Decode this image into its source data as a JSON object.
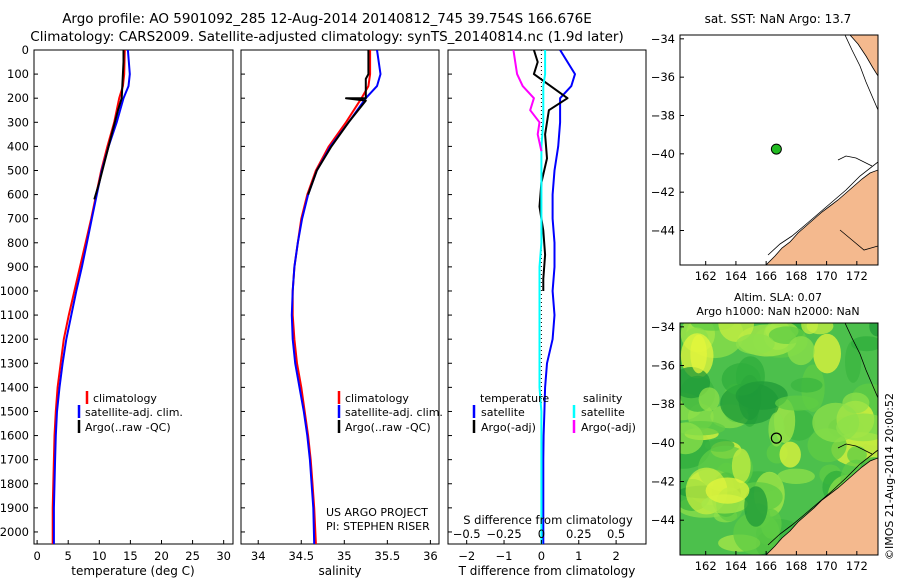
{
  "header": {
    "line1": "Argo profile: AO 5901092_285 12-Aug-2014 20140812_745 39.754S 166.676E",
    "line2": "Climatology: CARS2009. Satellite-adjusted climatology: synTS_20140814.nc (1.9d later)"
  },
  "colors": {
    "climatology": "#ff0000",
    "satellite": "#0000ff",
    "argo": "#000000",
    "argo_salinity": "#ff00ff",
    "satellite_salinity": "#00ffff",
    "land": "#f4b98e",
    "float_marker": "#22bb22"
  },
  "chart_data": [
    {
      "type": "line",
      "panel": "temperature",
      "xlabel": "temperature (deg C)",
      "ylabel": "",
      "xlim": [
        -0.5,
        31.5
      ],
      "ylim": [
        2050,
        0
      ],
      "xticks": [
        0,
        5,
        10,
        15,
        20,
        25,
        30
      ],
      "yticks": [
        0,
        100,
        200,
        300,
        400,
        500,
        600,
        700,
        800,
        900,
        1000,
        1100,
        1200,
        1300,
        1400,
        1500,
        1600,
        1700,
        1800,
        1900,
        2000
      ],
      "legend": [
        "climatology",
        "satellite-adj. clim.",
        "Argo(..raw -QC)"
      ],
      "series": [
        {
          "name": "climatology",
          "color": "#ff0000",
          "x": [
            14.1,
            14.0,
            13.8,
            13.2,
            12.4,
            11.3,
            10.3,
            9.5,
            8.7,
            7.8,
            6.9,
            6.0,
            5.1,
            4.3,
            3.8,
            3.3,
            3.0,
            2.8,
            2.7,
            2.6,
            2.5,
            2.5
          ],
          "y": [
            0,
            100,
            150,
            200,
            300,
            400,
            500,
            600,
            700,
            800,
            900,
            1000,
            1100,
            1200,
            1300,
            1400,
            1500,
            1600,
            1700,
            1800,
            1900,
            2050
          ]
        },
        {
          "name": "satellite-adj. clim.",
          "color": "#0000ff",
          "x": [
            14.6,
            14.9,
            14.7,
            13.9,
            12.8,
            11.5,
            10.4,
            9.6,
            8.8,
            8.0,
            7.2,
            6.3,
            5.5,
            4.7,
            4.1,
            3.6,
            3.2,
            3.0,
            2.9,
            2.8,
            2.7,
            2.7
          ],
          "y": [
            0,
            100,
            150,
            200,
            300,
            400,
            500,
            600,
            700,
            800,
            900,
            1000,
            1100,
            1200,
            1300,
            1400,
            1500,
            1600,
            1700,
            1800,
            1900,
            2050
          ]
        },
        {
          "name": "Argo(..raw -QC)",
          "color": "#000000",
          "x": [
            13.9,
            13.9,
            13.8,
            13.6,
            13.0,
            12.0,
            11.0,
            10.0,
            9.2
          ],
          "y": [
            0,
            50,
            100,
            200,
            250,
            350,
            450,
            550,
            620
          ]
        }
      ]
    },
    {
      "type": "line",
      "panel": "salinity",
      "xlabel": "salinity",
      "xlim": [
        33.8,
        36.1
      ],
      "ylim": [
        2050,
        0
      ],
      "xticks": [
        34,
        34.5,
        35,
        35.5,
        36
      ],
      "xticklabels": [
        "34",
        "34.5",
        "35",
        "35.5",
        "36"
      ],
      "legend": [
        "climatology",
        "satellite-adj. clim.",
        "Argo(..raw -QC)"
      ],
      "annotations": [
        "US ARGO PROJECT",
        "PI: STEPHEN RISER"
      ],
      "series": [
        {
          "name": "climatology",
          "color": "#ff0000",
          "x": [
            35.3,
            35.3,
            35.28,
            35.2,
            35.02,
            34.82,
            34.67,
            34.57,
            34.5,
            34.46,
            34.42,
            34.4,
            34.4,
            34.42,
            34.45,
            34.5,
            34.54,
            34.58,
            34.61,
            34.63,
            34.65,
            34.67
          ],
          "y": [
            0,
            100,
            150,
            200,
            300,
            400,
            500,
            600,
            700,
            800,
            900,
            1000,
            1100,
            1200,
            1300,
            1400,
            1500,
            1600,
            1700,
            1800,
            1900,
            2050
          ]
        },
        {
          "name": "satellite-adj. clim.",
          "color": "#0000ff",
          "x": [
            35.38,
            35.42,
            35.38,
            35.25,
            35.05,
            34.84,
            34.68,
            34.58,
            34.51,
            34.46,
            34.42,
            34.4,
            34.39,
            34.4,
            34.43,
            34.48,
            34.53,
            34.57,
            34.6,
            34.62,
            34.64,
            34.65
          ],
          "y": [
            0,
            100,
            150,
            200,
            300,
            400,
            500,
            600,
            700,
            800,
            900,
            1000,
            1100,
            1200,
            1300,
            1400,
            1500,
            1600,
            1700,
            1800,
            1900,
            2050
          ]
        },
        {
          "name": "Argo(..raw -QC)",
          "color": "#000000",
          "x": [
            35.28,
            35.28,
            35.25,
            35.25,
            35.02,
            35.25,
            35.05,
            34.85,
            34.68,
            34.58
          ],
          "y": [
            0,
            100,
            120,
            200,
            200,
            210,
            300,
            400,
            500,
            600
          ]
        }
      ]
    },
    {
      "type": "line",
      "panel": "difference",
      "xlabel": "T difference from climatology",
      "xlabel_top": "S difference from climatology",
      "xlim": [
        -2.5,
        2.8
      ],
      "ylim": [
        2050,
        0
      ],
      "xticks": [
        -2,
        -1,
        0,
        1,
        2
      ],
      "xticklabels": [
        "−2",
        "−1",
        "0",
        "1",
        "2"
      ],
      "s_ticklabels": [
        "−0.5",
        "−0.25",
        "0",
        "0.25",
        "0.5"
      ],
      "legend_title_left": "temperature",
      "legend_title_right": "salinity",
      "legend": [
        "satellite",
        "Argo(-adj)",
        "satellite",
        "Argo(-adj)"
      ],
      "series": [
        {
          "name": "satellite",
          "color": "#0000ff",
          "x": [
            0.5,
            0.9,
            0.8,
            0.5,
            0.5,
            0.45,
            0.35,
            0.3,
            0.3,
            0.35,
            0.35,
            0.3,
            0.35,
            0.3,
            0.15,
            0.1,
            0.08,
            0.06,
            0.05,
            0.05,
            0.05,
            0.05
          ],
          "y": [
            0,
            100,
            150,
            200,
            300,
            400,
            500,
            600,
            700,
            800,
            900,
            1000,
            1100,
            1200,
            1300,
            1400,
            1500,
            1600,
            1700,
            1800,
            1900,
            2050
          ]
        },
        {
          "name": "Argo(-adj)",
          "color": "#000000",
          "x": [
            -0.2,
            -0.1,
            -0.2,
            0.7,
            0.2,
            0.1,
            0.15,
            0.0,
            -0.05,
            0.05,
            0.1,
            0.05,
            0.05
          ],
          "y": [
            0,
            50,
            100,
            200,
            250,
            350,
            450,
            550,
            650,
            750,
            850,
            950,
            1000
          ]
        },
        {
          "name": "satellite",
          "color": "#00ffff",
          "x": [
            0.1,
            0.1,
            0.05,
            0.05,
            0.05,
            0.0,
            0.0,
            0.0,
            0.0,
            0.0,
            -0.05,
            -0.05,
            -0.05,
            -0.05,
            -0.05,
            -0.05,
            0.0,
            0.0,
            0.0,
            0.0,
            0.0,
            0.0
          ],
          "y": [
            0,
            100,
            150,
            200,
            300,
            400,
            500,
            600,
            700,
            800,
            900,
            1000,
            1100,
            1200,
            1300,
            1400,
            1500,
            1600,
            1700,
            1800,
            1900,
            2050
          ]
        },
        {
          "name": "Argo(-adj)",
          "color": "#ff00ff",
          "x": [
            -0.75,
            -0.65,
            -0.5,
            -0.2,
            -0.3,
            -0.05,
            -0.1,
            0.0
          ],
          "y": [
            0,
            100,
            150,
            200,
            250,
            300,
            350,
            420
          ]
        }
      ]
    },
    {
      "type": "map",
      "panel": "sst-map",
      "title": "sat. SST: NaN Argo: 13.7",
      "xlim": [
        160.3,
        173.4
      ],
      "ylim": [
        -45.8,
        -33.8
      ],
      "xticks": [
        162,
        164,
        166,
        168,
        170,
        172
      ],
      "yticks": [
        -34,
        -36,
        -38,
        -40,
        -42,
        -44
      ],
      "yticklabels": [
        "−34",
        "−36",
        "−38",
        "−40",
        "−42",
        "−44"
      ],
      "float_lon": 166.676,
      "float_lat": -39.754
    },
    {
      "type": "heatmap",
      "panel": "sla-map",
      "title_line1": "Altim. SLA: 0.07",
      "title_line2": "Argo h1000: NaN h2000: NaN",
      "side_label": "©IMOS 21-Aug-2014 20:00:52",
      "xlim": [
        160.3,
        173.4
      ],
      "ylim": [
        -45.8,
        -33.8
      ],
      "xticks": [
        162,
        164,
        166,
        168,
        170,
        172
      ],
      "yticks": [
        -34,
        -36,
        -38,
        -40,
        -42,
        -44
      ],
      "yticklabels": [
        "−34",
        "−36",
        "−38",
        "−40",
        "−42",
        "−44"
      ],
      "float_lon": 166.676,
      "float_lat": -39.754
    }
  ]
}
